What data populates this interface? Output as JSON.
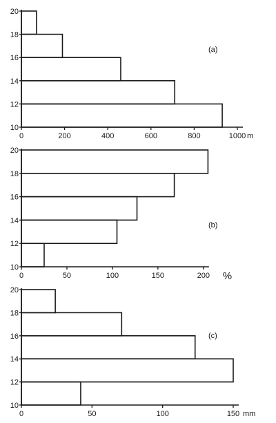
{
  "chart_data": [
    {
      "type": "bar",
      "orientation": "horizontal",
      "label": "(a)",
      "categories": [
        "10-12",
        "12-14",
        "14-16",
        "16-18",
        "18-20"
      ],
      "y_ticks": [
        "10",
        "12",
        "14",
        "16",
        "18",
        "20"
      ],
      "values": [
        930,
        710,
        460,
        190,
        70
      ],
      "xlim": [
        0,
        1000
      ],
      "x_ticks": [
        "0",
        "200",
        "400",
        "600",
        "800",
        "1000"
      ],
      "x_unit": "m",
      "grid": false
    },
    {
      "type": "bar",
      "orientation": "horizontal",
      "label": "(b)",
      "categories": [
        "10-12",
        "12-14",
        "14-16",
        "16-18",
        "18-20"
      ],
      "y_ticks": [
        "10",
        "12",
        "14",
        "16",
        "18",
        "20"
      ],
      "values": [
        25,
        105,
        127,
        168,
        205
      ],
      "xlim": [
        0,
        200
      ],
      "x_ticks": [
        "0",
        "50",
        "100",
        "150",
        "200"
      ],
      "x_unit": "%",
      "grid": false
    },
    {
      "type": "bar",
      "orientation": "horizontal",
      "label": "(c)",
      "categories": [
        "10-12",
        "12-14",
        "14-16",
        "16-18",
        "18-20"
      ],
      "y_ticks": [
        "10",
        "12",
        "14",
        "16",
        "18",
        "20"
      ],
      "values": [
        42,
        150,
        123,
        71,
        24
      ],
      "xlim": [
        0,
        150
      ],
      "x_ticks": [
        "0",
        "50",
        "100",
        "150"
      ],
      "x_unit": "mm",
      "grid": false
    }
  ]
}
